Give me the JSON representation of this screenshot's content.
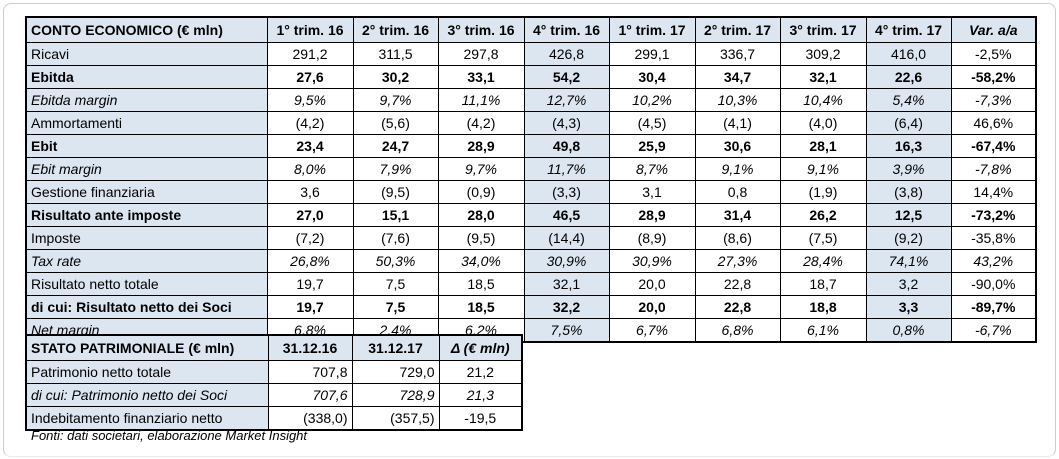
{
  "page": {
    "accent_fill": "#dce6f1",
    "grid_color": "#000000",
    "frame_color": "#c9cdd6"
  },
  "income_statement": {
    "title": "CONTO ECONOMICO (€ mln)",
    "columns": [
      "1° trim. 16",
      "2° trim. 16",
      "3° trim. 16",
      "4° trim. 16",
      "1° trim. 17",
      "2° trim. 17",
      "3° trim. 17",
      "4° trim. 17"
    ],
    "var_header": "Var. a/a",
    "highlight_columns": [
      3,
      7
    ],
    "rows": [
      {
        "label": "Ricavi",
        "style": "regular",
        "values": [
          "291,2",
          "311,5",
          "297,8",
          "426,8",
          "299,1",
          "336,7",
          "309,2",
          "416,0"
        ],
        "var": "-2,5%"
      },
      {
        "label": "Ebitda",
        "style": "bold",
        "values": [
          "27,6",
          "30,2",
          "33,1",
          "54,2",
          "30,4",
          "34,7",
          "32,1",
          "22,6"
        ],
        "var": "-58,2%"
      },
      {
        "label": "Ebitda margin",
        "style": "italic",
        "values": [
          "9,5%",
          "9,7%",
          "11,1%",
          "12,7%",
          "10,2%",
          "10,3%",
          "10,4%",
          "5,4%"
        ],
        "var": "-7,3%"
      },
      {
        "label": "Ammortamenti",
        "style": "regular",
        "values": [
          "(4,2)",
          "(5,6)",
          "(4,2)",
          "(4,3)",
          "(4,5)",
          "(4,1)",
          "(4,0)",
          "(6,4)"
        ],
        "var": "46,6%"
      },
      {
        "label": "Ebit",
        "style": "bold",
        "values": [
          "23,4",
          "24,7",
          "28,9",
          "49,8",
          "25,9",
          "30,6",
          "28,1",
          "16,3"
        ],
        "var": "-67,4%"
      },
      {
        "label": "Ebit margin",
        "style": "italic",
        "values": [
          "8,0%",
          "7,9%",
          "9,7%",
          "11,7%",
          "8,7%",
          "9,1%",
          "9,1%",
          "3,9%"
        ],
        "var": "-7,8%"
      },
      {
        "label": "Gestione finanziaria",
        "style": "regular",
        "values": [
          "3,6",
          "(9,5)",
          "(0,9)",
          "(3,3)",
          "3,1",
          "0,8",
          "(1,9)",
          "(3,8)"
        ],
        "var": "14,4%"
      },
      {
        "label": "Risultato ante imposte",
        "style": "bold",
        "values": [
          "27,0",
          "15,1",
          "28,0",
          "46,5",
          "28,9",
          "31,4",
          "26,2",
          "12,5"
        ],
        "var": "-73,2%"
      },
      {
        "label": "Imposte",
        "style": "regular",
        "values": [
          "(7,2)",
          "(7,6)",
          "(9,5)",
          "(14,4)",
          "(8,9)",
          "(8,6)",
          "(7,5)",
          "(9,2)"
        ],
        "var": "-35,8%"
      },
      {
        "label": "Tax rate",
        "style": "italic",
        "values": [
          "26,8%",
          "50,3%",
          "34,0%",
          "30,9%",
          "30,9%",
          "27,3%",
          "28,4%",
          "74,1%"
        ],
        "var": "43,2%"
      },
      {
        "label": "Risultato netto totale",
        "style": "regular",
        "values": [
          "19,7",
          "7,5",
          "18,5",
          "32,1",
          "20,0",
          "22,8",
          "18,7",
          "3,2"
        ],
        "var": "-90,0%"
      },
      {
        "label": "di cui: Risultato netto dei Soci",
        "style": "bold",
        "values": [
          "19,7",
          "7,5",
          "18,5",
          "32,2",
          "20,0",
          "22,8",
          "18,8",
          "3,3"
        ],
        "var": "-89,7%"
      },
      {
        "label": "Net margin",
        "style": "italic",
        "values": [
          "6,8%",
          "2,4%",
          "6,2%",
          "7,5%",
          "6,7%",
          "6,8%",
          "6,1%",
          "0,8%"
        ],
        "var": "-6,7%"
      }
    ]
  },
  "balance_sheet": {
    "title": "STATO PATRIMONIALE (€ mln)",
    "columns": [
      "31.12.16",
      "31.12.17"
    ],
    "delta_header": "Δ (€ mln)",
    "rows": [
      {
        "label": "Patrimonio netto totale",
        "style": "regular",
        "values": [
          "707,8",
          "729,0"
        ],
        "delta": "21,2"
      },
      {
        "label": "di cui: Patrimonio netto dei Soci",
        "style": "italic",
        "values": [
          "707,6",
          "728,9"
        ],
        "delta": "21,3"
      },
      {
        "label": "Indebitamento finanziario netto",
        "style": "regular",
        "values": [
          "(338,0)",
          "(357,5)"
        ],
        "delta": "-19,5"
      }
    ]
  },
  "footer": {
    "source_note": "Fonti: dati societari, elaborazione Market Insight"
  }
}
